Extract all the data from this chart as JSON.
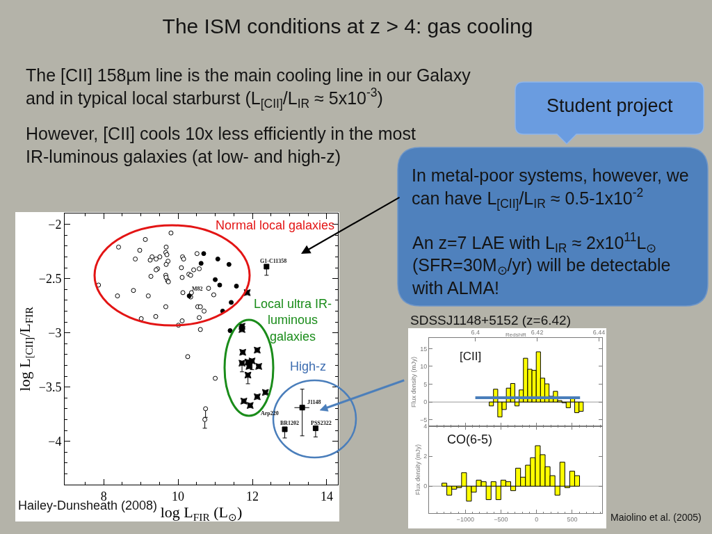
{
  "chart_data": [
    {
      "type": "scatter",
      "title": "The ISM conditions at z > 4: gas cooling",
      "xlabel": "log L$_{FIR}$ (L$_{⊙}$)",
      "ylabel": "log L$_{[CII]}$/L$_{FIR}$",
      "xlim": [
        6.95,
        14.3
      ],
      "ylim": [
        -4.4,
        -1.9
      ],
      "xticks": [
        {
          "value": 7.5,
          "label": null
        },
        8,
        {
          "value": 8.5,
          "label": null
        },
        {
          "value": 9,
          "label": null
        },
        {
          "value": 9.5,
          "label": null
        },
        10,
        {
          "value": 10.5,
          "label": null
        },
        {
          "value": 11,
          "label": null
        },
        {
          "value": 11.5,
          "label": null
        },
        12,
        {
          "value": 12.5,
          "label": null
        },
        {
          "value": 13,
          "label": null
        },
        {
          "value": 13.5,
          "label": null
        },
        14
      ],
      "yticks": [
        {
          "value": -4.3,
          "label": null
        },
        {
          "value": -4.2,
          "label": null
        },
        {
          "value": -4.1,
          "label": null
        },
        -4,
        {
          "value": -3.9,
          "label": null
        },
        {
          "value": -3.8,
          "label": null
        },
        {
          "value": -3.7,
          "label": null
        },
        {
          "value": -3.6,
          "label": null
        },
        -3.5,
        {
          "value": -3.4,
          "label": null
        },
        {
          "value": -3.3,
          "label": null
        },
        {
          "value": -3.2,
          "label": null
        },
        {
          "value": -3.1,
          "label": null
        },
        -3,
        {
          "value": -2.9,
          "label": null
        },
        {
          "value": -2.8,
          "label": null
        },
        {
          "value": -2.7,
          "label": null
        },
        {
          "value": -2.6,
          "label": null
        },
        -2.5,
        {
          "value": -2.4,
          "label": null
        },
        {
          "value": -2.3,
          "label": null
        },
        {
          "value": -2.2,
          "label": null
        },
        {
          "value": -2.1,
          "label": null
        },
        -2
      ],
      "series": [
        {
          "color": "#ffffff",
          "marker": "circle",
          "x": [
            9.81,
            9.12,
            8.4,
            8.97,
            9.68,
            9.67,
            9.7,
            8.85,
            9.3,
            9.25,
            9.41,
            9.51,
            9.73,
            9.68,
            9.45,
            9.41,
            9.27,
            9.67,
            9.68,
            9.72,
            9.74,
            7.86,
            8.8,
            8.37,
            9.2,
            9.67,
            9.01,
            9.4,
            10.51,
            10.12,
            10.15,
            10.09,
            10.42,
            10.57,
            10.29,
            10.34,
            10.11,
            10.82,
            10.13,
            10.36,
            10.34,
            10.96,
            10.53,
            10.6,
            10.7,
            10.57,
            10.11,
            10.01,
            10.6,
            10.26,
            11.0
          ],
          "values": [
            -2.08,
            -2.14,
            -2.21,
            -2.24,
            -2.21,
            -2.26,
            -2.28,
            -2.32,
            -2.3,
            -2.33,
            -2.32,
            -2.3,
            -2.34,
            -2.37,
            -2.41,
            -2.42,
            -2.48,
            -2.47,
            -2.49,
            -2.52,
            -2.53,
            -2.56,
            -2.61,
            -2.66,
            -2.66,
            -2.76,
            -2.87,
            -2.85,
            -2.27,
            -2.3,
            -2.32,
            -2.4,
            -2.42,
            -2.41,
            -2.46,
            -2.47,
            -2.49,
            -2.59,
            -2.63,
            -2.63,
            -2.67,
            -2.65,
            -2.76,
            -2.76,
            -2.8,
            -2.86,
            -2.89,
            -2.93,
            -2.97,
            -3.22,
            -3.42
          ]
        },
        {
          "color": "#ffffff",
          "marker": "circle",
          "x": [
            10.74,
            10.72
          ],
          "values": [
            -3.7,
            -3.8
          ],
          "errors": [
            [
              -3.78,
              -3.7
            ],
            [
              -3.88,
              -3.8
            ]
          ]
        },
        {
          "color": "#000000",
          "marker": "circle",
          "x": [
            10.69,
            11.07,
            10.62,
            11.37,
            11.0,
            11.12,
            11.57,
            10.3,
            11.43,
            11.2,
            11.4
          ],
          "values": [
            -2.27,
            -2.32,
            -2.36,
            -2.37,
            -2.51,
            -2.56,
            -2.57,
            -2.66,
            -2.72,
            -2.8,
            -2.98
          ]
        },
        {
          "color": "#000000",
          "marker": "star",
          "x": [
            11.86,
            11.72,
            11.72,
            11.74,
            12.13,
            11.88,
            11.91,
            12.17,
            12.35,
            12.13,
            11.77,
            11.94
          ],
          "values": [
            -2.63,
            -2.94,
            -2.97,
            -3.18,
            -3.16,
            -3.27,
            -3.31,
            -3.31,
            -3.55,
            -3.59,
            -3.63,
            -3.67
          ]
        },
        {
          "color": "#000000",
          "marker": "star",
          "x": [
            11.72,
            11.99,
            11.88
          ],
          "values": [
            -3.28,
            -3.26,
            -3.39
          ],
          "errors": [
            [
              -3.36,
              -3.28
            ],
            [
              -3.34,
              -3.26
            ],
            [
              -3.47,
              -3.39
            ]
          ]
        },
        {
          "color": "#000000",
          "marker": "square",
          "x": [
            12.38,
            13.34,
            12.87,
            13.7
          ],
          "values": [
            -2.39,
            -3.69,
            -3.89,
            -3.88
          ],
          "errors": [
            [
              -2.47,
              -2.39
            ],
            [
              -3.95,
              -3.52
            ],
            [
              -3.97,
              -3.89
            ],
            [
              -3.96,
              -3.88
            ]
          ],
          "xerrors": [
            null,
            [
              13.13,
              13.53
            ],
            null,
            null
          ]
        }
      ],
      "annotations": [
        "The [CII] 158µm line is the main cooling line in our Galaxy and in typical local starburst (L$_{[CII]}$/L$_{IR}$ ≈ 5x10$^{-3}$)",
        "However, [CII] cools 10x less efficiently in the most IR-luminous galaxies (at low- and high-z)",
        "Normal local galaxies",
        "Local ultra IR-luminous galaxies",
        "High-z",
        "Hailey-Dunsheath (2008)",
        "G1-C11358",
        "M82",
        "Arp220",
        "J1148",
        "BR1202",
        "PSS2322"
      ]
    },
    {
      "type": "other",
      "annotations": [
        "Student project",
        "In metal-poor systems, however, we can have L$_{[CII]}$/L$_{IR}$ ≈ 0.5-1x10$^{-2}$",
        "An z=7 LAE with L$_{IR}$ ≈ 2x10$^{11}$L$_{⊙}$ (SFR=30M$_{⊙}$/yr) will be detectable with ALMA!"
      ]
    },
    {
      "type": "histogram",
      "title": "SDSSJ1148+5152 (z=6.42)",
      "ylabel": "Flux density (mJy)",
      "x2label": "Redshift",
      "bins": [
        -665,
        -605,
        -545,
        -485,
        -425,
        -365,
        -305,
        -245,
        -185,
        -125,
        -65,
        -5,
        55,
        115,
        175,
        235,
        295,
        355,
        415,
        475,
        535,
        595,
        655
      ],
      "series": [
        {
          "color": "#ffff00",
          "values": [
            -1.1,
            3.6,
            -4.2,
            -2.1,
            3.9,
            5.2,
            -1.1,
            3.4,
            12.3,
            9.2,
            8.9,
            14.1,
            6.7,
            5.1,
            1.6,
            3.0,
            0.4,
            -0.2,
            -1.6,
            1.0,
            -3.0,
            -2.6
          ]
        },
        {
          "type": "line",
          "color": "#4a7ebb",
          "x": [
            -860,
            610
          ],
          "values": [
            1.2,
            1.2
          ]
        }
      ],
      "xlim": [
        -1510,
        920
      ],
      "xticks": [
        {
          "value": -1400,
          "label": null
        },
        {
          "value": -1300,
          "label": null
        },
        {
          "value": -1200,
          "label": null
        },
        {
          "value": -1100,
          "label": null
        },
        -1000,
        {
          "value": -900,
          "label": null
        },
        {
          "value": -800,
          "label": null
        },
        {
          "value": -700,
          "label": null
        },
        {
          "value": -600,
          "label": null
        },
        -500,
        {
          "value": -400,
          "label": null
        },
        {
          "value": -300,
          "label": null
        },
        {
          "value": -200,
          "label": null
        },
        {
          "value": -100,
          "label": null
        },
        0,
        {
          "value": 100,
          "label": null
        },
        {
          "value": 200,
          "label": null
        },
        {
          "value": 300,
          "label": null
        },
        {
          "value": 400,
          "label": null
        },
        500,
        {
          "value": 600,
          "label": null
        },
        {
          "value": 700,
          "label": null
        },
        {
          "value": 800,
          "label": null
        },
        {
          "value": 900,
          "label": null
        }
      ],
      "ylim": [
        -6.8,
        18
      ],
      "yticks": [
        -5,
        0,
        5,
        10,
        15
      ],
      "x2lim": [
        6.385,
        6.441
      ],
      "x2ticks": [
        6.4,
        6.42,
        6.44
      ],
      "ref_lines": [
        {
          "axis": "y",
          "value": 0,
          "color": "#999999"
        }
      ],
      "tick_labels": "y",
      "annotations": [
        "[CII]"
      ]
    },
    {
      "type": "histogram",
      "ylabel": "Flux density (mJy)",
      "bins": [
        -1329,
        -1260,
        -1191,
        -1122,
        -1053,
        -984,
        -915,
        -846,
        -777,
        -708,
        -639,
        -570,
        -501,
        -432,
        -363,
        -294,
        -225,
        -156,
        -87,
        -18,
        51,
        120,
        189,
        258,
        327,
        396,
        465,
        534,
        603
      ],
      "values": [
        0.2,
        -0.6,
        -0.2,
        -0.1,
        0.9,
        -1.0,
        -0.4,
        0.4,
        0.3,
        -0.9,
        0.3,
        -0.9,
        0.4,
        0.3,
        -0.3,
        1.2,
        0.6,
        1.4,
        1.9,
        2.7,
        2.1,
        1.3,
        0.7,
        -0.6,
        1.6,
        -0.1,
        1.0,
        0.7
      ],
      "color": "#ffff00",
      "xlim": [
        -1510,
        920
      ],
      "xticks": [
        {
          "value": -1400,
          "label": null
        },
        {
          "value": -1300,
          "label": null
        },
        {
          "value": -1200,
          "label": null
        },
        {
          "value": -1100,
          "label": null
        },
        -1000,
        {
          "value": -900,
          "label": null
        },
        {
          "value": -800,
          "label": null
        },
        {
          "value": -700,
          "label": null
        },
        {
          "value": -600,
          "label": null
        },
        -500,
        {
          "value": -400,
          "label": null
        },
        {
          "value": -300,
          "label": null
        },
        {
          "value": -200,
          "label": null
        },
        {
          "value": -100,
          "label": null
        },
        0,
        {
          "value": 100,
          "label": null
        },
        {
          "value": 200,
          "label": null
        },
        {
          "value": 300,
          "label": null
        },
        {
          "value": 400,
          "label": null
        },
        500,
        {
          "value": 600,
          "label": null
        },
        {
          "value": 700,
          "label": null
        },
        {
          "value": 800,
          "label": null
        },
        {
          "value": 900,
          "label": null
        }
      ],
      "ylim": [
        -1.8,
        4
      ],
      "yticks": [
        0,
        2,
        4
      ],
      "ref_lines": [
        {
          "axis": "y",
          "value": 0,
          "color": "#999999"
        }
      ],
      "annotations": [
        "CO(6-5)",
        "Maiolino et al. (2005)"
      ]
    }
  ]
}
